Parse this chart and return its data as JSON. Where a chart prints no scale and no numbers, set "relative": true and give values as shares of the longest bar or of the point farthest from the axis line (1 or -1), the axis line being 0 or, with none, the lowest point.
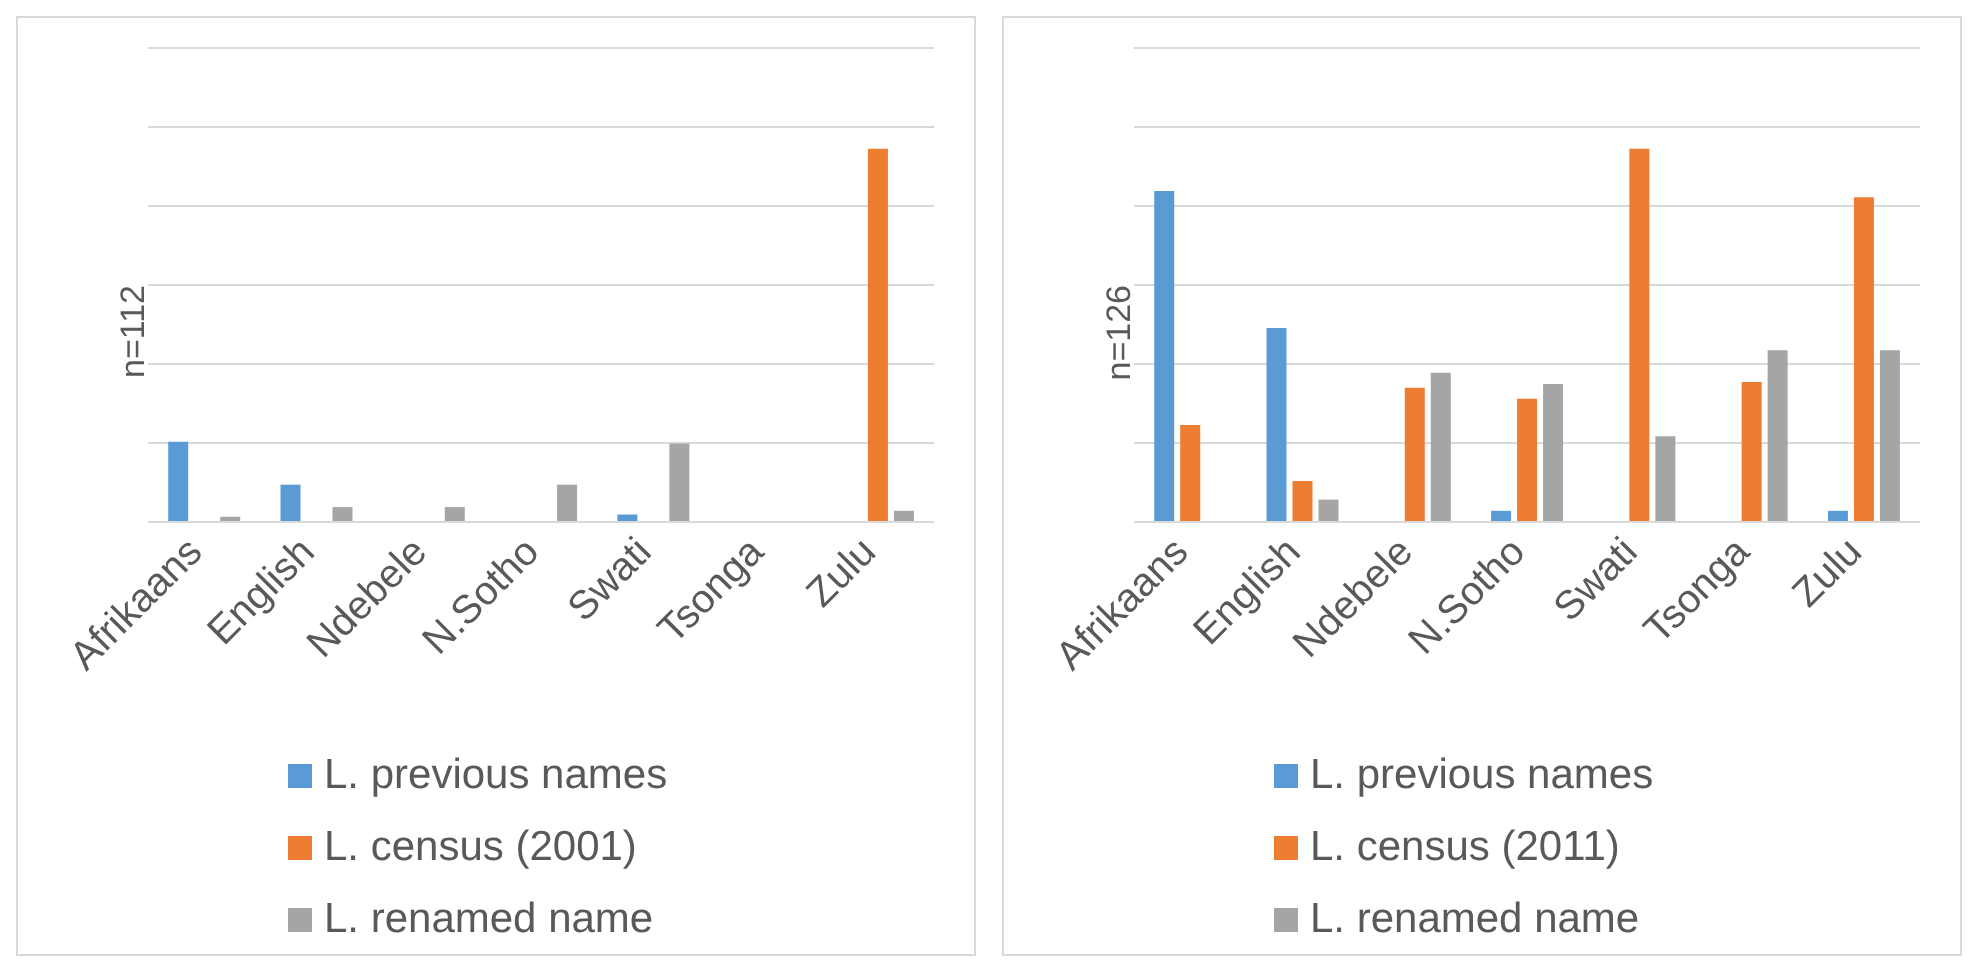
{
  "chart_data": [
    {
      "type": "bar",
      "relative": true,
      "ylabel": "n=112",
      "categories": [
        "Afrikaans",
        "English",
        "Ndebele",
        "N.Sotho",
        "Swati",
        "Tsonga",
        "Zulu"
      ],
      "grid": "y",
      "legend": "bottom",
      "series": [
        {
          "name": "L. previous names",
          "color": "#5b9bd5",
          "values": [
            0.215,
            0.1,
            0,
            0,
            0.02,
            0,
            0
          ]
        },
        {
          "name": "L. census (2001)",
          "color": "#ed7d31",
          "values": [
            0,
            0,
            0,
            0,
            0,
            0,
            1
          ]
        },
        {
          "name": "L. renamed name",
          "color": "#a5a5a5",
          "values": [
            0.014,
            0.04,
            0.04,
            0.1,
            0.21,
            0,
            0.03
          ]
        }
      ]
    },
    {
      "type": "bar",
      "relative": true,
      "ylabel": "n=126",
      "categories": [
        "Afrikaans",
        "English",
        "Ndebele",
        "N.Sotho",
        "Swati",
        "Tsonga",
        "Zulu"
      ],
      "grid": "y",
      "legend": "bottom",
      "series": [
        {
          "name": "L. previous names",
          "color": "#5b9bd5",
          "values": [
            0.887,
            0.52,
            0,
            0.03,
            0,
            0,
            0.03
          ]
        },
        {
          "name": "L. census (2011)",
          "color": "#ed7d31",
          "values": [
            0.26,
            0.11,
            0.36,
            0.33,
            1,
            0.375,
            0.87
          ]
        },
        {
          "name": "L. renamed name",
          "color": "#a5a5a5",
          "values": [
            0,
            0.06,
            0.4,
            0.37,
            0.23,
            0.46,
            0.46
          ]
        }
      ]
    }
  ]
}
